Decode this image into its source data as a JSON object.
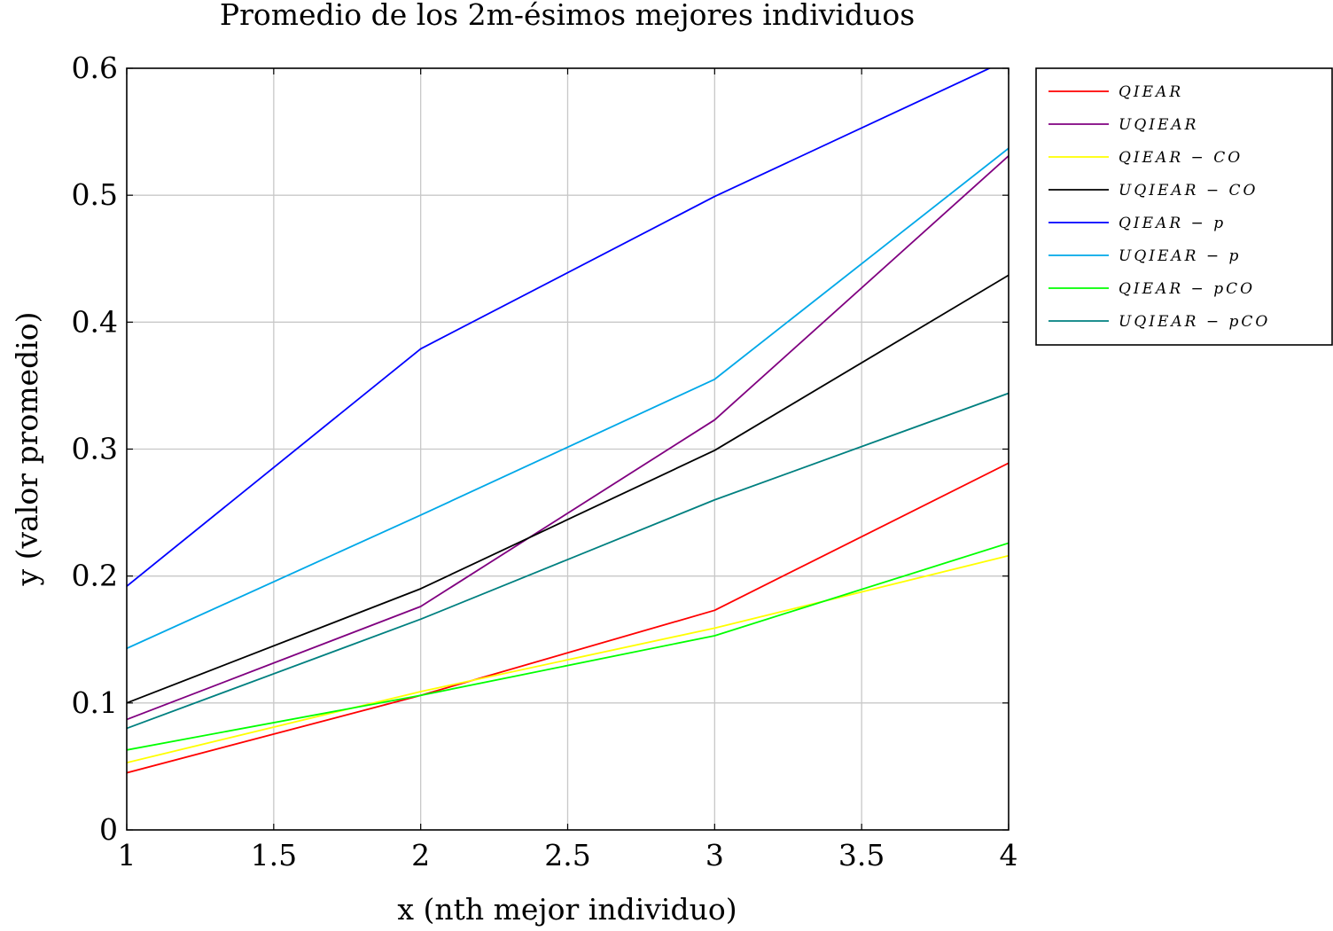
{
  "chart_data": {
    "type": "line",
    "title": "Promedio de los 2m-ésimos mejores individuos",
    "xlabel": "x (nth mejor individuo)",
    "ylabel": "y (valor promedio)",
    "xlim": [
      1,
      4
    ],
    "ylim": [
      0,
      0.6
    ],
    "xticks": [
      1,
      1.5,
      2,
      2.5,
      3,
      3.5,
      4
    ],
    "xtick_labels": [
      "1",
      "1.5",
      "2",
      "2.5",
      "3",
      "3.5",
      "4"
    ],
    "yticks": [
      0,
      0.1,
      0.2,
      0.3,
      0.4,
      0.5,
      0.6
    ],
    "ytick_labels": [
      "0",
      "0.1",
      "0.2",
      "0.3",
      "0.4",
      "0.5",
      "0.6"
    ],
    "grid": true,
    "legend_position": "outside-right-top",
    "x": [
      1,
      2,
      3,
      4
    ],
    "series": [
      {
        "name": "QIEAR",
        "color": "#ff0000",
        "values": [
          0.045,
          0.106,
          0.173,
          0.289
        ]
      },
      {
        "name": "UQIEAR",
        "color": "#800080",
        "values": [
          0.087,
          0.176,
          0.323,
          0.531
        ]
      },
      {
        "name": "QIEAR − CO",
        "color": "#ffff00",
        "values": [
          0.053,
          0.109,
          0.159,
          0.216
        ]
      },
      {
        "name": "UQIEAR − CO",
        "color": "#000000",
        "values": [
          0.1,
          0.19,
          0.299,
          0.437
        ]
      },
      {
        "name": "QIEAR − p",
        "color": "#0000ff",
        "values": [
          0.192,
          0.379,
          0.499,
          0.607
        ]
      },
      {
        "name": "UQIEAR − p",
        "color": "#00a8e8",
        "values": [
          0.143,
          0.248,
          0.355,
          0.537
        ]
      },
      {
        "name": "QIEAR − pCO",
        "color": "#00ff00",
        "values": [
          0.063,
          0.106,
          0.153,
          0.226
        ]
      },
      {
        "name": "UQIEAR − pCO",
        "color": "#008080",
        "values": [
          0.08,
          0.166,
          0.26,
          0.344
        ]
      }
    ]
  }
}
